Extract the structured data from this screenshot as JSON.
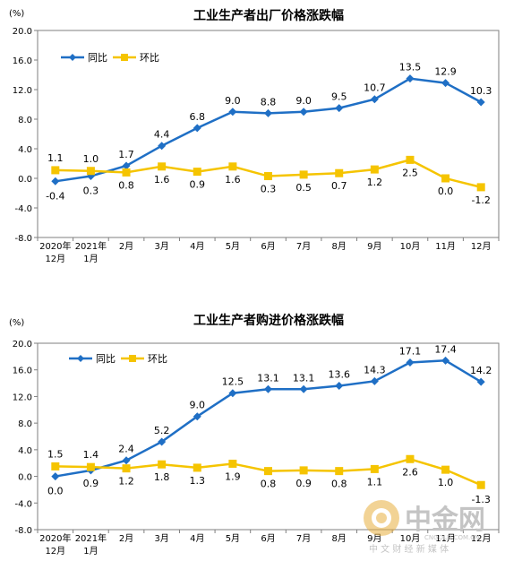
{
  "chart_data": [
    {
      "type": "line",
      "title": "工业生产者出厂价格涨跌幅",
      "unit_label": "(%)",
      "categories": [
        [
          "2020年",
          "12月"
        ],
        [
          "2021年",
          "1月"
        ],
        [
          "2月"
        ],
        [
          "3月"
        ],
        [
          "4月"
        ],
        [
          "5月"
        ],
        [
          "6月"
        ],
        [
          "7月"
        ],
        [
          "8月"
        ],
        [
          "9月"
        ],
        [
          "10月"
        ],
        [
          "11月"
        ],
        [
          "12月"
        ]
      ],
      "yticks": [
        "20.0",
        "16.0",
        "12.0",
        "8.0",
        "4.0",
        "0.0",
        "-4.0",
        "-8.0"
      ],
      "ylim": [
        -8,
        20
      ],
      "legend_position": "top-left",
      "grid": false,
      "series": [
        {
          "name": "同比",
          "color": "#1F6FC5",
          "marker": "diamond",
          "values": [
            -0.4,
            0.3,
            1.7,
            4.4,
            6.8,
            9.0,
            8.8,
            9.0,
            9.5,
            10.7,
            13.5,
            12.9,
            10.3
          ],
          "labels": [
            "-0.4",
            "0.3",
            "1.7",
            "4.4",
            "6.8",
            "9.0",
            "8.8",
            "9.0",
            "9.5",
            "10.7",
            "13.5",
            "12.9",
            "10.3"
          ]
        },
        {
          "name": "环比",
          "color": "#F5C400",
          "marker": "square",
          "values": [
            1.1,
            1.0,
            0.8,
            1.6,
            0.9,
            1.6,
            0.3,
            0.5,
            0.7,
            1.2,
            2.5,
            0.0,
            -1.2
          ],
          "labels": [
            "1.1",
            "1.0",
            "0.8",
            "1.6",
            "0.9",
            "1.6",
            "0.3",
            "0.5",
            "0.7",
            "1.2",
            "2.5",
            "0.0",
            "-1.2"
          ]
        }
      ]
    },
    {
      "type": "line",
      "title": "工业生产者购进价格涨跌幅",
      "unit_label": "(%)",
      "categories": [
        [
          "2020年",
          "12月"
        ],
        [
          "2021年",
          "1月"
        ],
        [
          "2月"
        ],
        [
          "3月"
        ],
        [
          "4月"
        ],
        [
          "5月"
        ],
        [
          "6月"
        ],
        [
          "7月"
        ],
        [
          "8月"
        ],
        [
          "9月"
        ],
        [
          "10月"
        ],
        [
          "11月"
        ],
        [
          "12月"
        ]
      ],
      "yticks": [
        "20.0",
        "16.0",
        "12.0",
        "8.0",
        "4.0",
        "0.0",
        "-4.0",
        "-8.0"
      ],
      "ylim": [
        -8,
        20
      ],
      "legend_position": "top-left",
      "grid": false,
      "series": [
        {
          "name": "同比",
          "color": "#1F6FC5",
          "marker": "diamond",
          "values": [
            0.0,
            0.9,
            2.4,
            5.2,
            9.0,
            12.5,
            13.1,
            13.1,
            13.6,
            14.3,
            17.1,
            17.4,
            14.2
          ],
          "labels": [
            "0.0",
            "0.9",
            "2.4",
            "5.2",
            "9.0",
            "12.5",
            "13.1",
            "13.1",
            "13.6",
            "14.3",
            "17.1",
            "17.4",
            "14.2"
          ]
        },
        {
          "name": "环比",
          "color": "#F5C400",
          "marker": "square",
          "values": [
            1.5,
            1.4,
            1.2,
            1.8,
            1.3,
            1.9,
            0.8,
            0.9,
            0.8,
            1.1,
            2.6,
            1.0,
            -1.3
          ],
          "labels": [
            "1.5",
            "1.4",
            "1.2",
            "1.8",
            "1.3",
            "1.9",
            "0.8",
            "0.9",
            "0.8",
            "1.1",
            "2.6",
            "1.0",
            "-1.3"
          ]
        }
      ]
    }
  ],
  "watermark": {
    "brand": "中金网",
    "domain": "CNGOLD.COM.CN",
    "tagline": "中 文 财 经 新 媒 体",
    "color": "#C4C4C4",
    "logo_color": "#E8B040"
  }
}
